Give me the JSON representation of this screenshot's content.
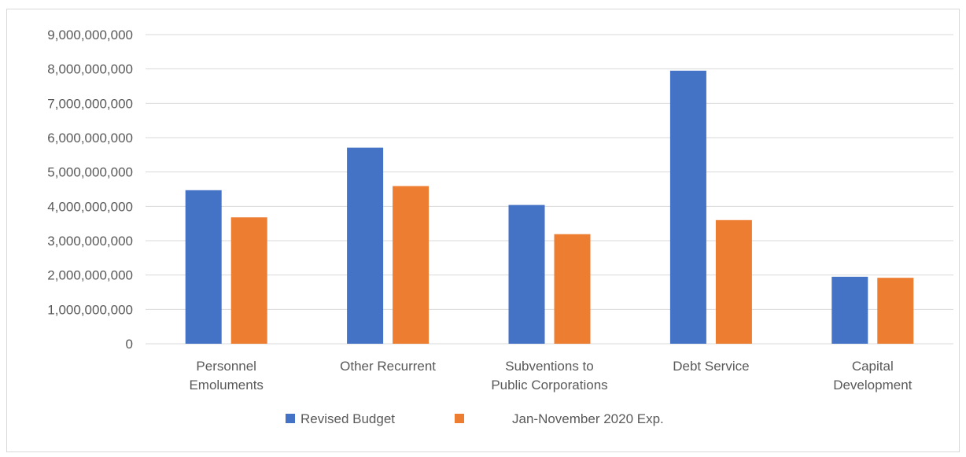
{
  "chart_data": {
    "type": "bar",
    "categories": [
      [
        "Personnel",
        "Emoluments"
      ],
      [
        "Other Recurrent"
      ],
      [
        "Subventions to",
        "Public Corporations"
      ],
      [
        "Debt Service"
      ],
      [
        "Capital",
        "Development"
      ]
    ],
    "series": [
      {
        "name": "Revised Budget",
        "color": "#4472c4",
        "values": [
          4470000000,
          5710000000,
          4040000000,
          7950000000,
          1950000000
        ]
      },
      {
        "name": "Jan-November 2020 Exp.",
        "color": "#ed7d31",
        "values": [
          3680000000,
          4590000000,
          3190000000,
          3600000000,
          1920000000
        ]
      }
    ],
    "ylim": [
      0,
      9000000000
    ],
    "yticks": [
      "0",
      "1,000,000,000",
      "2,000,000,000",
      "3,000,000,000",
      "4,000,000,000",
      "5,000,000,000",
      "6,000,000,000",
      "7,000,000,000",
      "8,000,000,000",
      "9,000,000,000"
    ],
    "grid": true,
    "legend_position": "bottom"
  }
}
